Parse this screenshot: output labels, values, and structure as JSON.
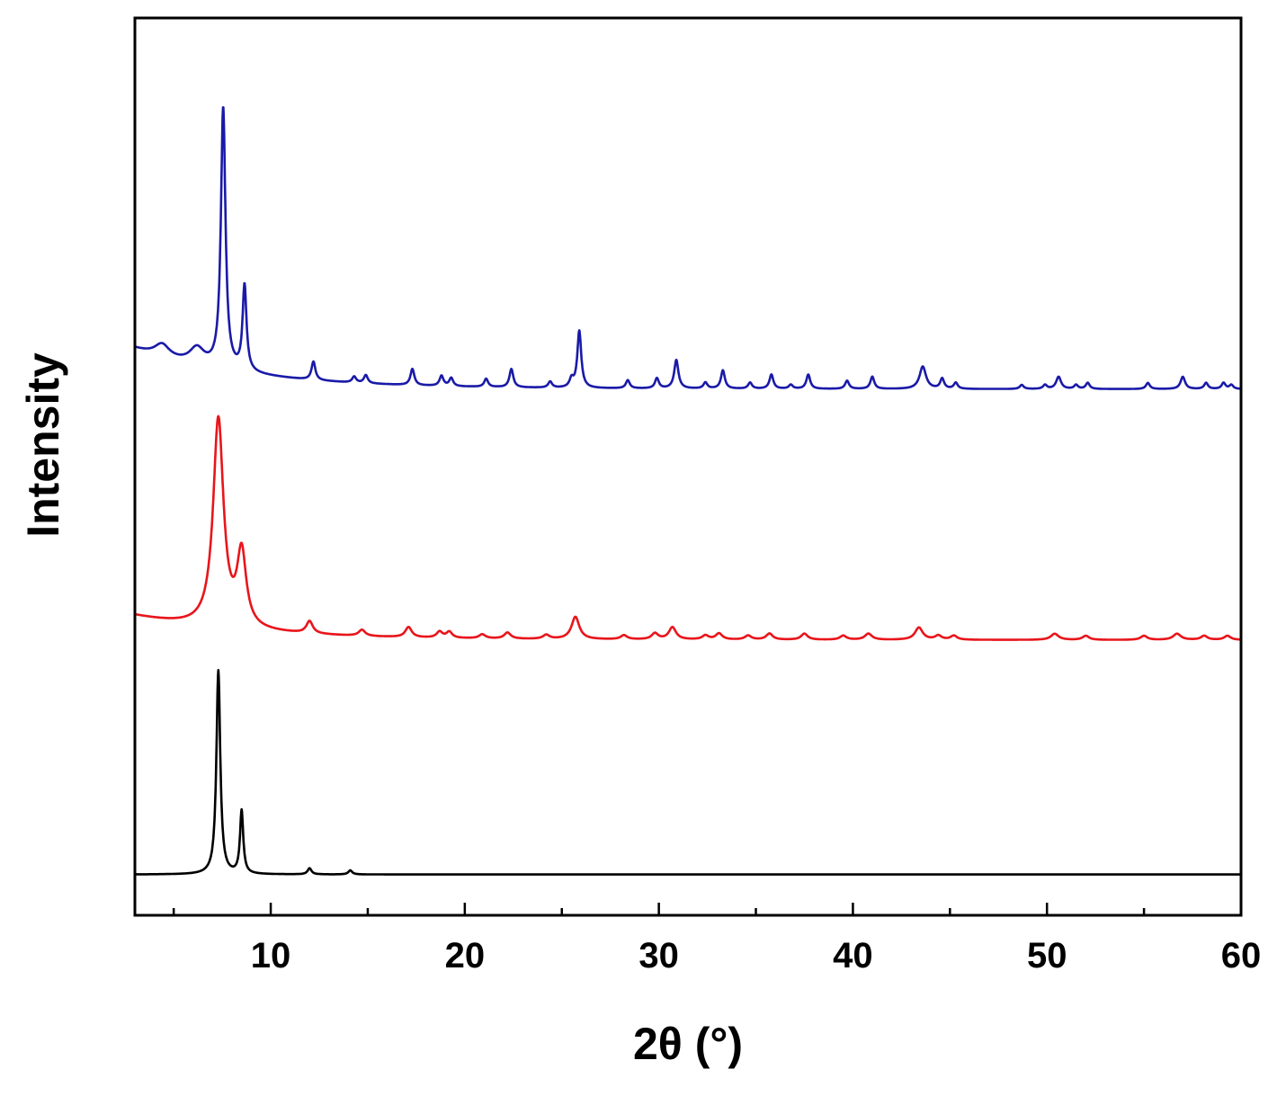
{
  "chart_data": {
    "type": "line",
    "xlabel": "2θ (°)",
    "ylabel": "Intensity",
    "xlim": [
      3,
      60
    ],
    "ylim": [
      -0.2,
      4.2
    ],
    "x_ticks": [
      10,
      20,
      30,
      40,
      50,
      60
    ],
    "y_ticks_shown": false,
    "grid": false,
    "legend": "none",
    "series": [
      {
        "color": "#000000",
        "baseline": 0,
        "background": 0,
        "peaks": [
          [
            7.3,
            1.0,
            0.12
          ],
          [
            8.5,
            0.31,
            0.1
          ],
          [
            12.0,
            0.03,
            0.12
          ],
          [
            14.1,
            0.02,
            0.12
          ]
        ]
      },
      {
        "color": "#e8151b",
        "baseline": 1.15,
        "background": 0.12,
        "peaks": [
          [
            7.3,
            1.02,
            0.32
          ],
          [
            8.5,
            0.36,
            0.28
          ],
          [
            12.0,
            0.06,
            0.2
          ],
          [
            14.7,
            0.03,
            0.2
          ],
          [
            17.1,
            0.05,
            0.2
          ],
          [
            18.7,
            0.03,
            0.18
          ],
          [
            19.2,
            0.03,
            0.18
          ],
          [
            20.9,
            0.02,
            0.2
          ],
          [
            22.2,
            0.03,
            0.2
          ],
          [
            24.2,
            0.02,
            0.2
          ],
          [
            25.7,
            0.11,
            0.24
          ],
          [
            28.2,
            0.02,
            0.2
          ],
          [
            29.8,
            0.03,
            0.2
          ],
          [
            30.7,
            0.06,
            0.22
          ],
          [
            32.4,
            0.02,
            0.2
          ],
          [
            33.1,
            0.03,
            0.2
          ],
          [
            34.6,
            0.02,
            0.2
          ],
          [
            35.7,
            0.03,
            0.2
          ],
          [
            37.5,
            0.03,
            0.2
          ],
          [
            39.5,
            0.02,
            0.2
          ],
          [
            40.8,
            0.03,
            0.22
          ],
          [
            43.4,
            0.06,
            0.24
          ],
          [
            44.4,
            0.02,
            0.2
          ],
          [
            45.2,
            0.02,
            0.2
          ],
          [
            50.4,
            0.03,
            0.24
          ],
          [
            52.0,
            0.02,
            0.2
          ],
          [
            55.0,
            0.02,
            0.2
          ],
          [
            56.7,
            0.03,
            0.24
          ],
          [
            58.1,
            0.02,
            0.2
          ],
          [
            59.3,
            0.02,
            0.2
          ]
        ]
      },
      {
        "color": "#1a1aa8",
        "baseline": 2.38,
        "background": 0.2,
        "peaks": [
          [
            4.4,
            0.06,
            0.45
          ],
          [
            6.2,
            0.08,
            0.45
          ],
          [
            7.55,
            1.28,
            0.14
          ],
          [
            8.65,
            0.42,
            0.12
          ],
          [
            12.2,
            0.09,
            0.12
          ],
          [
            14.3,
            0.03,
            0.12
          ],
          [
            14.9,
            0.04,
            0.12
          ],
          [
            17.3,
            0.08,
            0.12
          ],
          [
            18.8,
            0.05,
            0.12
          ],
          [
            19.3,
            0.04,
            0.12
          ],
          [
            21.1,
            0.04,
            0.12
          ],
          [
            22.4,
            0.09,
            0.12
          ],
          [
            24.4,
            0.03,
            0.12
          ],
          [
            25.5,
            0.04,
            0.12
          ],
          [
            25.9,
            0.28,
            0.12
          ],
          [
            28.4,
            0.04,
            0.12
          ],
          [
            29.9,
            0.05,
            0.12
          ],
          [
            30.9,
            0.14,
            0.13
          ],
          [
            32.4,
            0.03,
            0.12
          ],
          [
            33.3,
            0.09,
            0.12
          ],
          [
            34.7,
            0.03,
            0.12
          ],
          [
            35.8,
            0.07,
            0.12
          ],
          [
            36.8,
            0.02,
            0.12
          ],
          [
            37.7,
            0.07,
            0.12
          ],
          [
            39.7,
            0.04,
            0.12
          ],
          [
            41.0,
            0.06,
            0.12
          ],
          [
            43.6,
            0.11,
            0.2
          ],
          [
            44.6,
            0.05,
            0.12
          ],
          [
            45.3,
            0.03,
            0.12
          ],
          [
            48.7,
            0.02,
            0.12
          ],
          [
            49.9,
            0.02,
            0.12
          ],
          [
            50.6,
            0.06,
            0.15
          ],
          [
            51.5,
            0.02,
            0.12
          ],
          [
            52.1,
            0.03,
            0.12
          ],
          [
            55.2,
            0.03,
            0.12
          ],
          [
            57.0,
            0.06,
            0.14
          ],
          [
            58.2,
            0.03,
            0.12
          ],
          [
            59.1,
            0.03,
            0.12
          ],
          [
            59.5,
            0.02,
            0.12
          ]
        ]
      }
    ]
  }
}
